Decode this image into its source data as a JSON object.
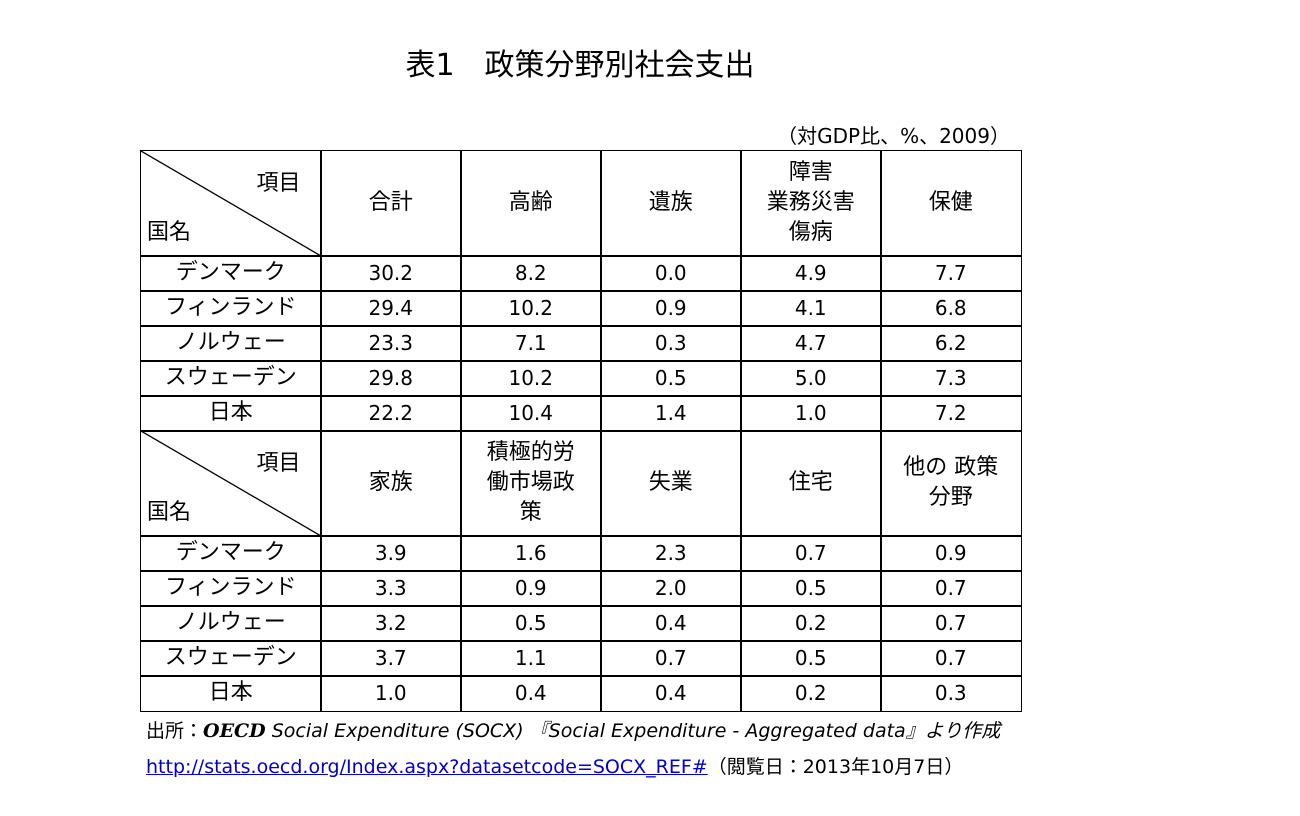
{
  "title": "表1　政策分野別社会支出",
  "unit_note": "（対GDP比、%、2009）",
  "tables": [
    {
      "corner_top": "項目",
      "corner_bottom": "国名",
      "columns": [
        [
          "合計"
        ],
        [
          "高齢"
        ],
        [
          "遺族"
        ],
        [
          "障害",
          "業務災害",
          "傷病"
        ],
        [
          "保健"
        ]
      ],
      "rows": [
        [
          "デンマーク",
          "30.2",
          "8.2",
          "0.0",
          "4.9",
          "7.7"
        ],
        [
          "フィンランド",
          "29.4",
          "10.2",
          "0.9",
          "4.1",
          "6.8"
        ],
        [
          "ノルウェー",
          "23.3",
          "7.1",
          "0.3",
          "4.7",
          "6.2"
        ],
        [
          "スウェーデン",
          "29.8",
          "10.2",
          "0.5",
          "5.0",
          "7.3"
        ],
        [
          "日本",
          "22.2",
          "10.4",
          "1.4",
          "1.0",
          "7.2"
        ]
      ]
    },
    {
      "corner_top": "項目",
      "corner_bottom": "国名",
      "columns": [
        [
          "家族"
        ],
        [
          "積極的労",
          "働市場政",
          "策"
        ],
        [
          "失業"
        ],
        [
          "住宅"
        ],
        [
          "他の 政策",
          "分野"
        ]
      ],
      "rows": [
        [
          "デンマーク",
          "3.9",
          "1.6",
          "2.3",
          "0.7",
          "0.9"
        ],
        [
          "フィンランド",
          "3.3",
          "0.9",
          "2.0",
          "0.5",
          "0.7"
        ],
        [
          "ノルウェー",
          "3.2",
          "0.5",
          "0.4",
          "0.2",
          "0.7"
        ],
        [
          "スウェーデン",
          "3.7",
          "1.1",
          "0.7",
          "0.5",
          "0.7"
        ],
        [
          "日本",
          "1.0",
          "0.4",
          "0.4",
          "0.2",
          "0.3"
        ]
      ]
    }
  ],
  "source": {
    "label": "出所：",
    "org": "OECD",
    "text": "Social Expenditure (SOCX) 『Social Expenditure - Aggregated data』より作成",
    "url": "http://stats.oecd.org/Index.aspx?datasetcode=SOCX_REF#",
    "accessed": "（閲覧日：2013年10月7日）"
  }
}
